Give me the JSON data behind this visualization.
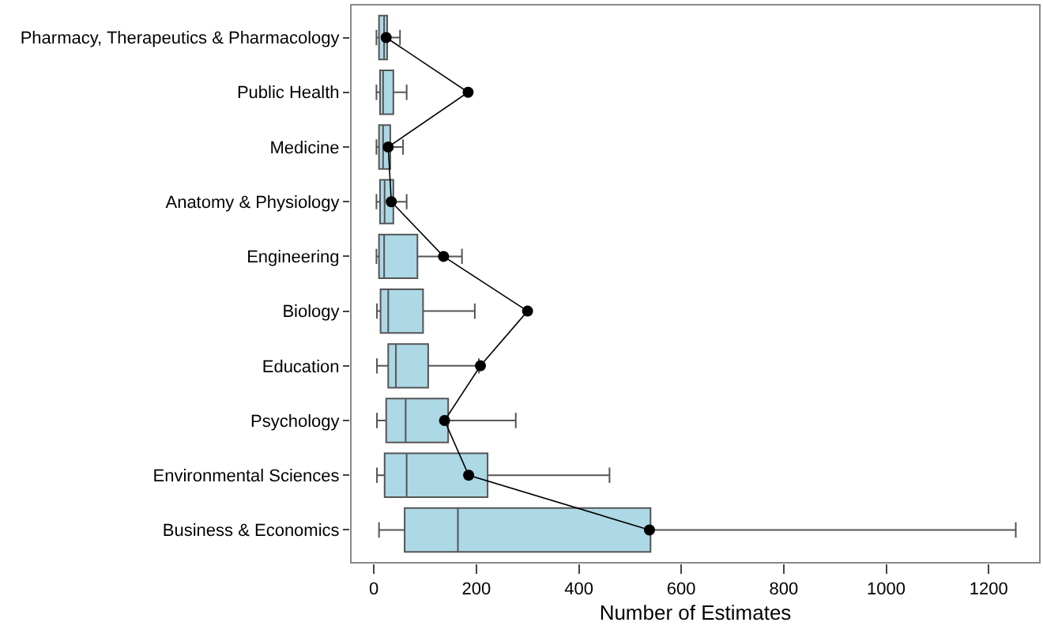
{
  "chart_data": {
    "type": "box",
    "orientation": "horizontal",
    "xlabel": "Number of Estimates",
    "categories": [
      "Pharmacy, Therapeutics & Pharmacology",
      "Public Health",
      "Medicine",
      "Anatomy & Physiology",
      "Engineering",
      "Biology",
      "Education",
      "Psychology",
      "Environmental Sciences",
      "Business & Economics"
    ],
    "color": "#add8e6",
    "boxes": [
      {
        "low": 5,
        "q1": 10,
        "median": 20,
        "q3": 26,
        "high": 51
      },
      {
        "low": 5,
        "q1": 12,
        "median": 18,
        "q3": 38,
        "high": 64
      },
      {
        "low": 5,
        "q1": 10,
        "median": 18,
        "q3": 32,
        "high": 57
      },
      {
        "low": 5,
        "q1": 12,
        "median": 21,
        "q3": 38,
        "high": 64
      },
      {
        "low": 5,
        "q1": 10,
        "median": 20,
        "q3": 85,
        "high": 172
      },
      {
        "low": 6,
        "q1": 13,
        "median": 28,
        "q3": 96,
        "high": 197
      },
      {
        "low": 6,
        "q1": 28,
        "median": 43,
        "q3": 106,
        "high": 205
      },
      {
        "low": 6,
        "q1": 24,
        "median": 62,
        "q3": 145,
        "high": 277
      },
      {
        "low": 6,
        "q1": 21,
        "median": 64,
        "q3": 222,
        "high": 460
      },
      {
        "low": 10,
        "q1": 60,
        "median": 164,
        "q3": 540,
        "high": 1253
      }
    ],
    "series": [
      {
        "type": "line",
        "color": "#000000",
        "marker": "circle",
        "values": [
          24,
          184,
          28,
          34,
          136,
          300,
          208,
          138,
          185,
          538
        ]
      }
    ],
    "xlim": [
      -45,
      1300
    ],
    "xticks": [
      0,
      200,
      400,
      600,
      800,
      1000,
      1200
    ],
    "grid": false
  }
}
